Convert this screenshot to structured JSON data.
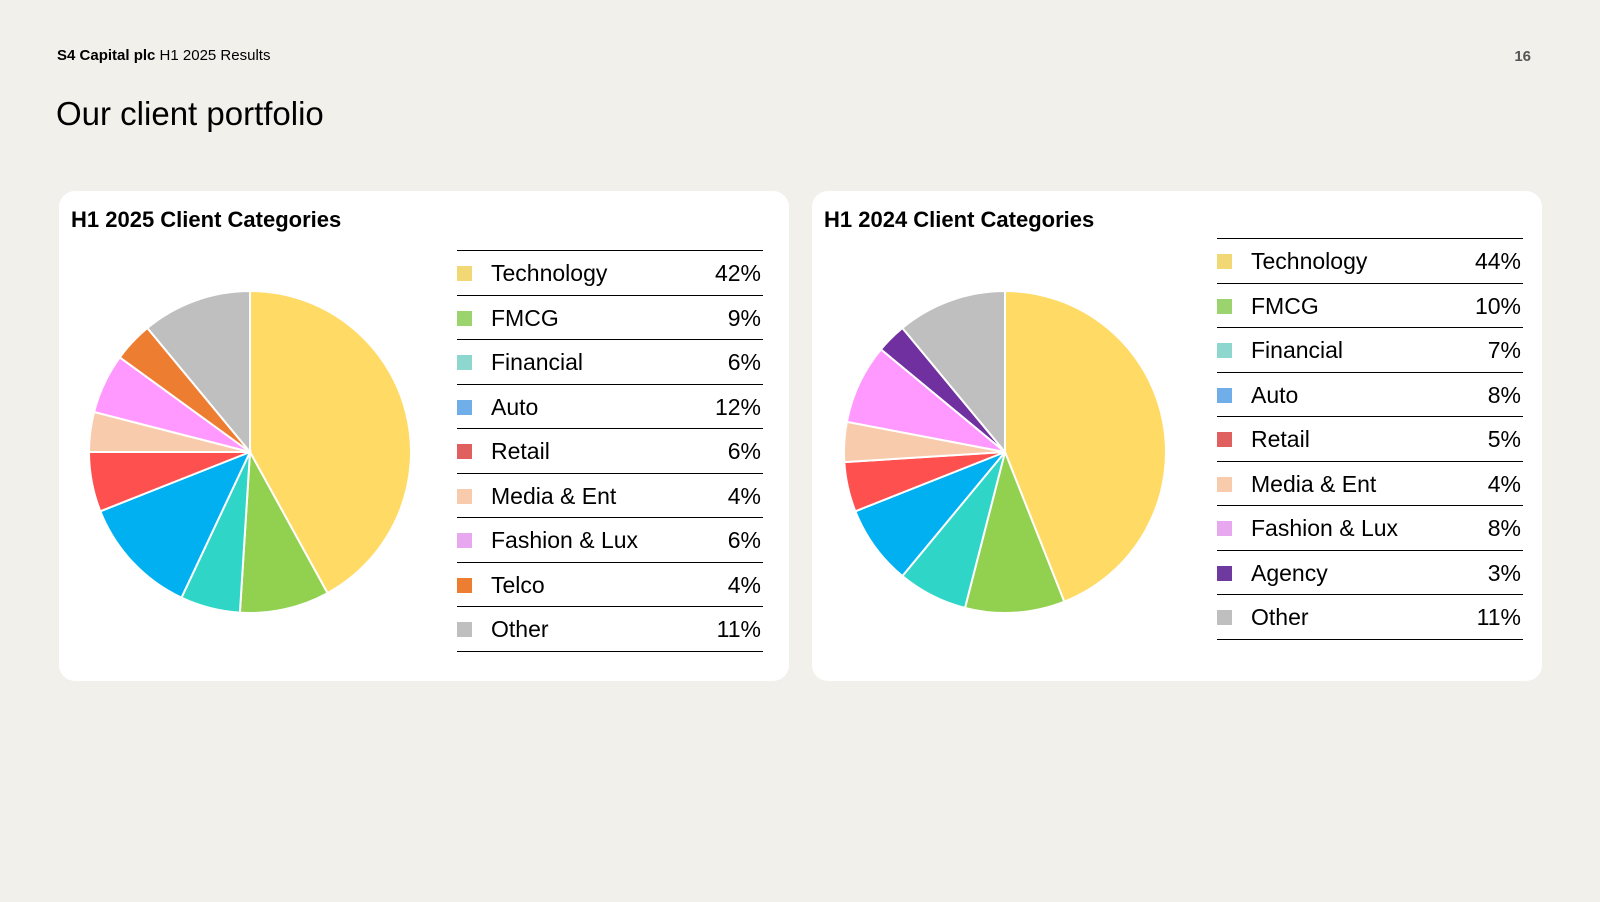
{
  "header": {
    "company": "S4 Capital plc",
    "report": "H1 2025 Results",
    "page_number": "16"
  },
  "page_title": "Our client portfolio",
  "chart_data": [
    {
      "type": "pie",
      "title": "H1 2025 Client Categories",
      "categories": [
        "Technology",
        "FMCG",
        "Financial",
        "Auto",
        "Retail",
        "Media & Ent",
        "Fashion & Lux",
        "Telco",
        "Other"
      ],
      "values": [
        42,
        9,
        6,
        12,
        6,
        4,
        6,
        4,
        11
      ],
      "value_labels": [
        "42%",
        "9%",
        "6%",
        "12%",
        "6%",
        "4%",
        "6%",
        "4%",
        "11%"
      ],
      "slice_colors": [
        "#FFDA65",
        "#92D050",
        "#2FD6C8",
        "#00B0F0",
        "#FF5050",
        "#F8CBAD",
        "#FF99FF",
        "#ED7D31",
        "#BFBFBF"
      ],
      "legend_colors": [
        "#F2D874",
        "#9BD36E",
        "#8DD7CF",
        "#6FAEE8",
        "#E06060",
        "#F8CBAD",
        "#E8A8F0",
        "#ED7D31",
        "#BFBFBF"
      ],
      "legend_position": "right"
    },
    {
      "type": "pie",
      "title": "H1 2024 Client Categories",
      "categories": [
        "Technology",
        "FMCG",
        "Financial",
        "Auto",
        "Retail",
        "Media & Ent",
        "Fashion & Lux",
        "Agency",
        "Other"
      ],
      "values": [
        44,
        10,
        7,
        8,
        5,
        4,
        8,
        3,
        11
      ],
      "value_labels": [
        "44%",
        "10%",
        "7%",
        "8%",
        "5%",
        "4%",
        "8%",
        "3%",
        "11%"
      ],
      "slice_colors": [
        "#FFDA65",
        "#92D050",
        "#2FD6C8",
        "#00B0F0",
        "#FF5050",
        "#F8CBAD",
        "#FF99FF",
        "#7030A0",
        "#BFBFBF"
      ],
      "legend_colors": [
        "#F2D874",
        "#9BD36E",
        "#8DD7CF",
        "#6FAEE8",
        "#E06060",
        "#F8CBAD",
        "#E8A8F0",
        "#6F3AA0",
        "#BFBFBF"
      ],
      "legend_position": "right"
    }
  ]
}
